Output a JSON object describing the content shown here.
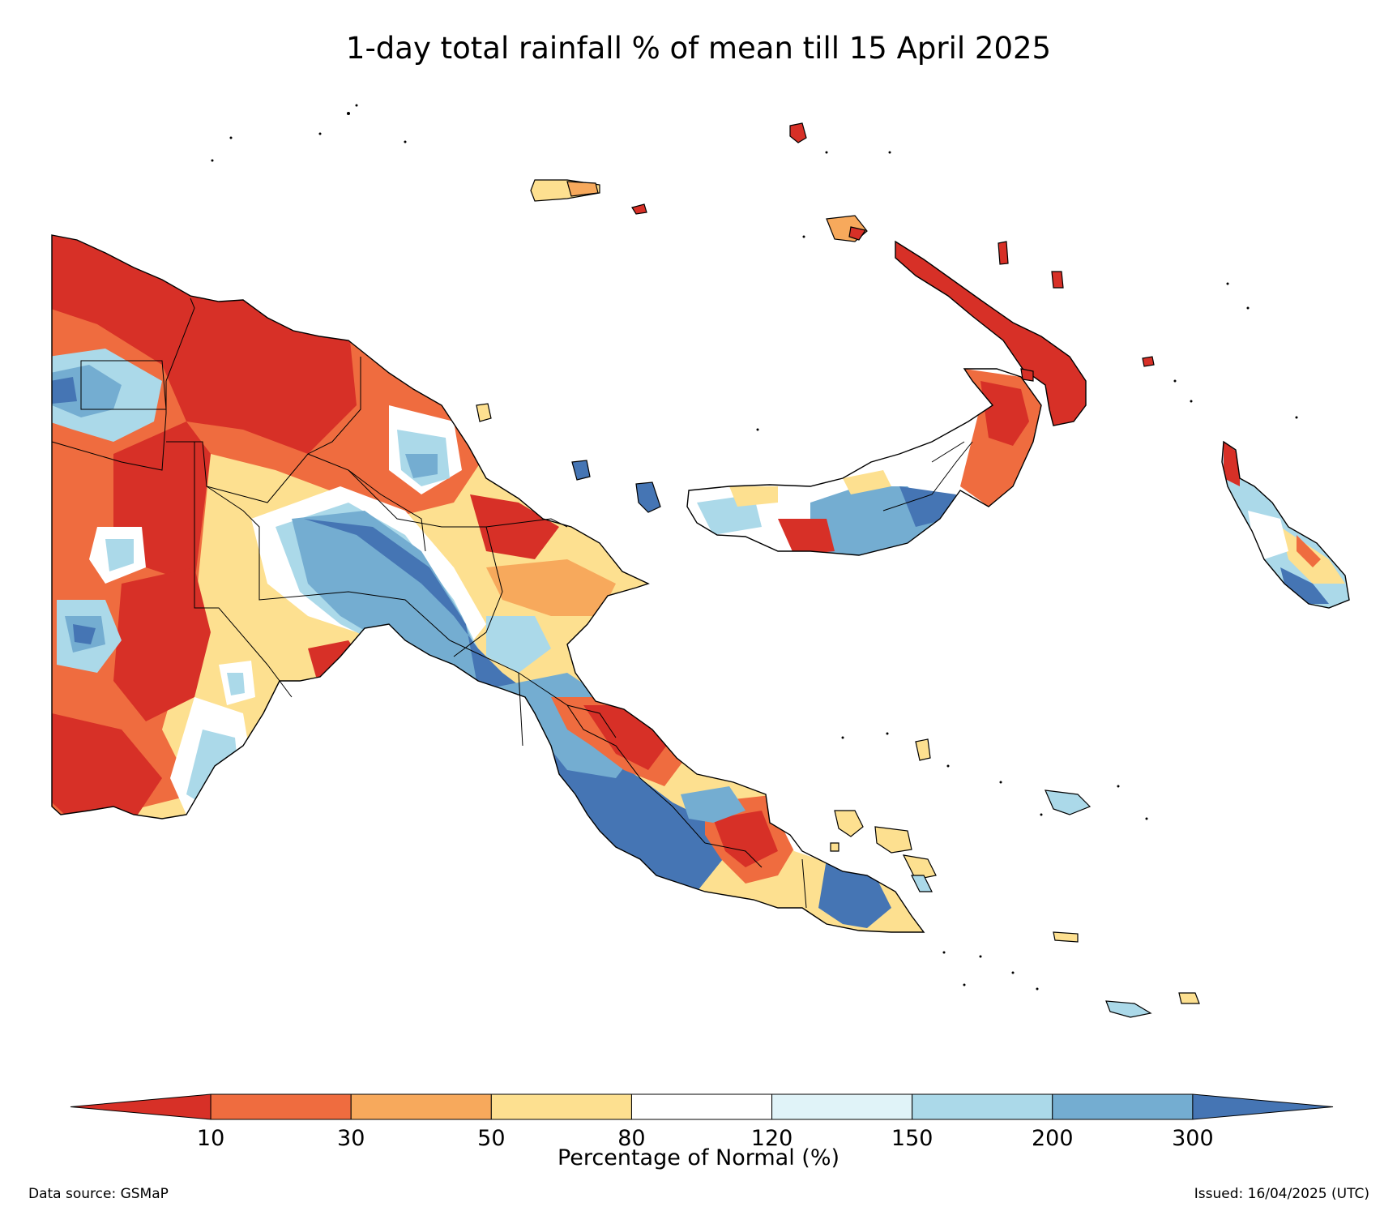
{
  "title": "1-day total rainfall % of mean till 15 April 2025",
  "legend": {
    "title": "Percentage of Normal (%)",
    "tick_labels": [
      "10",
      "30",
      "50",
      "80",
      "120",
      "150",
      "200",
      "300"
    ],
    "colors": [
      "#d73027",
      "#ef6c3f",
      "#f7a95c",
      "#fde090",
      "#ffffff",
      "#e0f3f8",
      "#abd9e9",
      "#74add1",
      "#4575b4"
    ]
  },
  "footer": {
    "source": "Data source: GSMaP",
    "issued": "Issued: 16/04/2025 (UTC)"
  },
  "map": {
    "region": "Papua New Guinea",
    "colors": {
      "dry_severe": "#d73027",
      "dry": "#ef6c3f",
      "below": "#f7a95c",
      "slightly_below": "#fde090",
      "normal": "#ffffff",
      "slightly_above": "#e0f3f8",
      "above": "#abd9e9",
      "wet": "#74add1",
      "very_wet": "#4575b4",
      "outline": "#000000"
    }
  }
}
